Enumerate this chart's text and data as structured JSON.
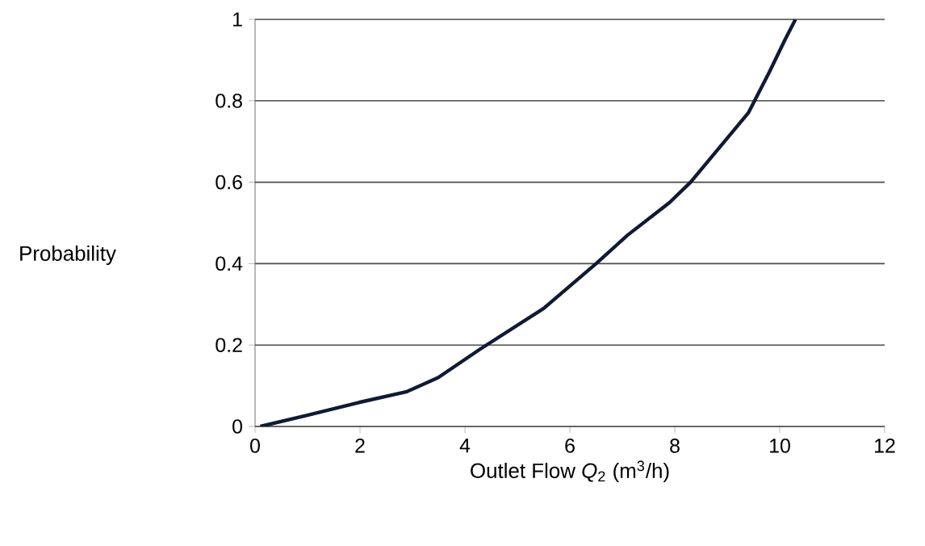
{
  "chart_data": {
    "type": "line",
    "xlabel": "Outlet Flow *Q*$_{2}$ (m$^{3}$/h)",
    "ylabel": "Probability",
    "x": [
      0.1,
      0.98,
      1.98,
      2.88,
      3.49,
      4.29,
      5.5,
      6.5,
      7.1,
      7.9,
      8.3,
      9.4,
      9.8,
      10.1,
      10.3
    ],
    "values": [
      0,
      0.027,
      0.059,
      0.085,
      0.12,
      0.19,
      0.29,
      0.4,
      0.47,
      0.55,
      0.6,
      0.77,
      0.87,
      0.95,
      1.0
    ],
    "color": "#111a33",
    "xlim": [
      0,
      12
    ],
    "ylim": [
      0,
      1
    ],
    "xticks": [
      0,
      2,
      4,
      6,
      8,
      10,
      12
    ],
    "yticks": [
      0,
      0.2,
      0.4,
      0.6,
      0.8,
      1
    ],
    "grid": "y",
    "marker": "none",
    "line_style": "solid"
  }
}
